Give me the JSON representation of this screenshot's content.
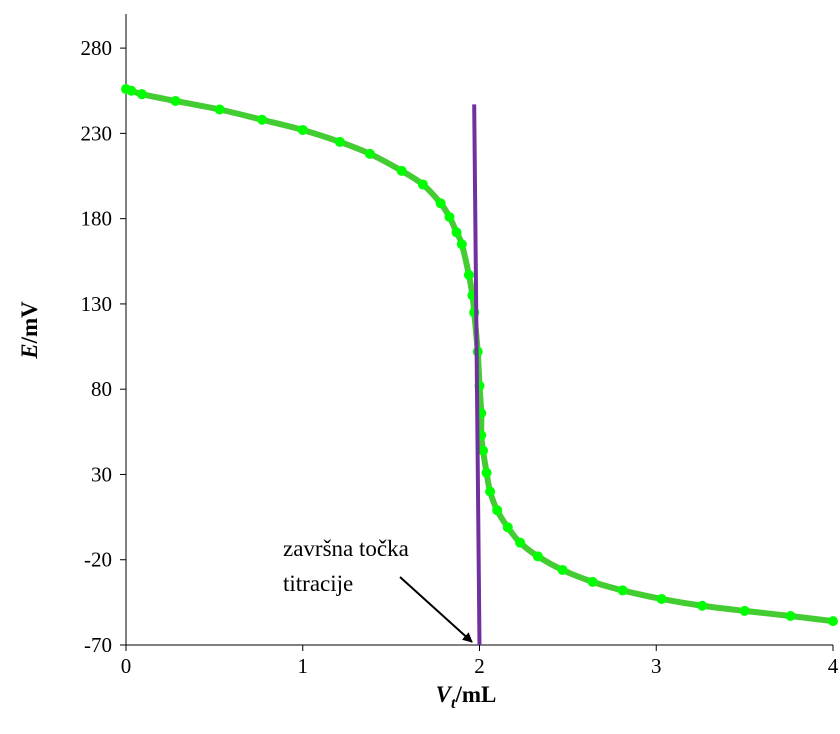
{
  "chart_data": {
    "type": "scatter",
    "title": "",
    "xlabel": {
      "main": "V",
      "sub": "t",
      "rest": "/mL"
    },
    "ylabel": {
      "main": "E",
      "rest": "/mV"
    },
    "xlim": [
      0,
      4
    ],
    "ylim": [
      -70,
      300
    ],
    "xticks": [
      0,
      1,
      2,
      3,
      4
    ],
    "yticks": [
      -70,
      -20,
      30,
      80,
      130,
      180,
      230,
      280
    ],
    "grid": false,
    "legend": "none",
    "series": [
      {
        "color": "#00ff00",
        "line_color": "#44cc33",
        "marker": "circle",
        "x": [
          0,
          0.03,
          0.09,
          0.28,
          0.53,
          0.77,
          1.0,
          1.21,
          1.38,
          1.56,
          1.68,
          1.78,
          1.83,
          1.87,
          1.9,
          1.94,
          1.96,
          1.97,
          1.99,
          2.0,
          2.01,
          2.01,
          2.02,
          2.04,
          2.06,
          2.1,
          2.16,
          2.23,
          2.33,
          2.47,
          2.64,
          2.81,
          3.03,
          3.26,
          3.5,
          3.76,
          4.0
        ],
        "y": [
          256,
          255,
          253,
          249,
          244,
          238,
          232,
          225,
          218,
          208,
          200,
          189,
          181,
          172,
          165,
          147,
          135,
          125,
          102,
          82,
          66,
          53,
          44,
          31,
          20,
          9,
          -1,
          -10,
          -18,
          -26,
          -33,
          -38,
          -43,
          -47,
          -50,
          -53,
          -56
        ]
      },
      {
        "color": "#7030a0",
        "marker": "none",
        "x": [
          1.97,
          2.0
        ],
        "y": [
          247,
          -70
        ]
      }
    ],
    "annotations": [
      {
        "lines": [
          "završna točka",
          "titracije"
        ],
        "arrow_to": [
          1.98,
          -70
        ]
      }
    ]
  }
}
